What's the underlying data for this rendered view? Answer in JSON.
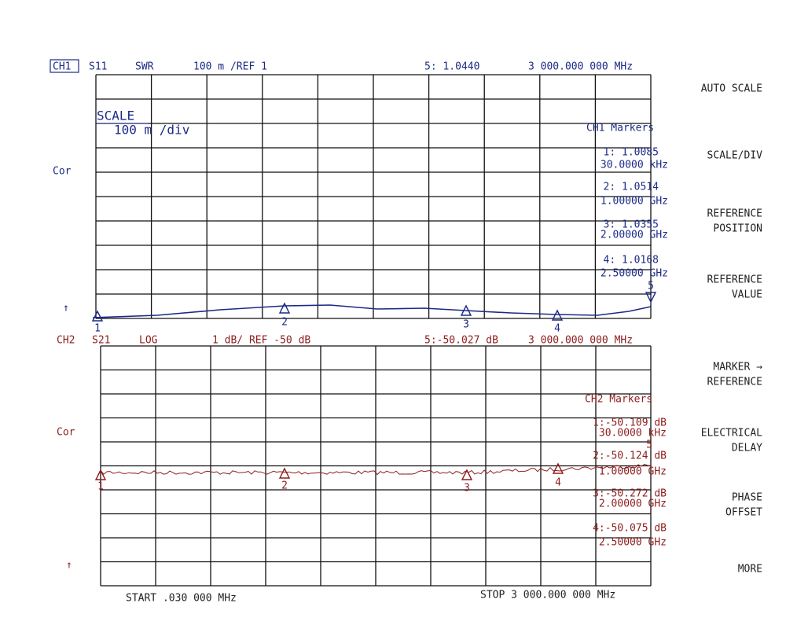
{
  "ch1": {
    "header": {
      "channel": "CH1",
      "parameter": "S11",
      "format": "SWR",
      "scale": "100 m /REF 1",
      "active_marker": "5: 1.0440",
      "frequency": "3 000.000 000 MHz"
    },
    "correction": "Cor",
    "reference_arrow": "↑",
    "scale_box": {
      "title": "SCALE",
      "value": "100 m /div"
    },
    "markers_title": "CH1 Markers",
    "markers": [
      {
        "value": "1: 1.0085",
        "frequency": "30.0000 kHz"
      },
      {
        "value": "2: 1.0514",
        "frequency": "1.00000 GHz"
      },
      {
        "value": "3: 1.0355",
        "frequency": "2.00000 GHz"
      },
      {
        "value": "4: 1.0168",
        "frequency": "2.50000 GHz"
      }
    ],
    "marker_numbers": [
      "1",
      "2",
      "3",
      "4",
      "5"
    ]
  },
  "ch2": {
    "header": {
      "channel": "CH2",
      "parameter": "S21",
      "format": "LOG",
      "scale": "1 dB/ REF -50 dB",
      "active_marker": "5:-50.027 dB",
      "frequency": "3 000.000 000 MHz"
    },
    "correction": "Cor",
    "reference_arrow": "↑",
    "markers_title": "CH2 Markers",
    "markers": [
      {
        "value": "1:-50.109 dB",
        "frequency": "30.0000 kHz"
      },
      {
        "value": "2:-50.124 dB",
        "frequency": "1.00000 GHz"
      },
      {
        "value": "3:-50.272 dB",
        "frequency": "2.00000 GHz"
      },
      {
        "value": "4:-50.075 dB",
        "frequency": "2.50000 GHz"
      }
    ],
    "marker_numbers": [
      "1",
      "2",
      "3",
      "4",
      "5"
    ]
  },
  "footer": {
    "start": "START .030 000 MHz",
    "stop": "STOP 3 000.000 000 MHz"
  },
  "softkeys": [
    [
      "AUTO SCALE"
    ],
    [
      "SCALE/DIV"
    ],
    [
      "REFERENCE",
      "POSITION"
    ],
    [
      "REFERENCE",
      "VALUE"
    ],
    [
      "MARKER →",
      "REFERENCE"
    ],
    [
      "ELECTRICAL",
      "DELAY"
    ],
    [
      "PHASE",
      "OFFSET"
    ],
    [
      "MORE"
    ]
  ]
}
